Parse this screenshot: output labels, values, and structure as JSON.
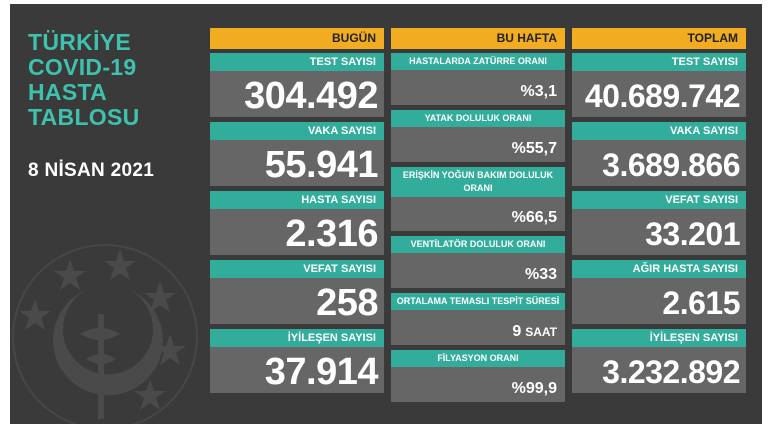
{
  "title_lines": [
    "TÜRKİYE",
    "COVID-19",
    "HASTA",
    "TABLOSU"
  ],
  "date": "8 NİSAN 2021",
  "columns": {
    "today": {
      "header": "BUGÜN",
      "items": [
        {
          "label": "TEST SAYISI",
          "value": "304.492"
        },
        {
          "label": "VAKA SAYISI",
          "value": "55.941"
        },
        {
          "label": "HASTA SAYISI",
          "value": "2.316"
        },
        {
          "label": "VEFAT SAYISI",
          "value": "258"
        },
        {
          "label": "İYİLEŞEN SAYISI",
          "value": "37.914"
        }
      ]
    },
    "week": {
      "header": "BU HAFTA",
      "items": [
        {
          "label": "HASTALARDA ZATÜRRE ORANI",
          "value": "%3,1"
        },
        {
          "label": "YATAK DOLULUK ORANI",
          "value": "%55,7"
        },
        {
          "label": "ERİŞKİN YOĞUN BAKIM DOLULUK ORANI",
          "value": "%66,5"
        },
        {
          "label": "VENTİLATÖR DOLULUK ORANI",
          "value": "%33"
        },
        {
          "label": "ORTALAMA TEMASLI TESPİT SÜRESİ",
          "value": "9",
          "unit": "SAAT"
        },
        {
          "label": "FİLYASYON ORANI",
          "value": "%99,9"
        }
      ]
    },
    "total": {
      "header": "TOPLAM",
      "items": [
        {
          "label": "TEST SAYISI",
          "value": "40.689.742"
        },
        {
          "label": "VAKA SAYISI",
          "value": "3.689.866"
        },
        {
          "label": "VEFAT SAYISI",
          "value": "33.201"
        },
        {
          "label": "AĞIR HASTA SAYISI",
          "value": "2.615"
        },
        {
          "label": "İYİLEŞEN SAYISI",
          "value": "3.232.892"
        }
      ]
    }
  },
  "colors": {
    "background": "#3a3a3a",
    "title": "#3ec1ad",
    "header": "#f2ac22",
    "label_bar": "#33ad9b",
    "card": "#666666"
  },
  "icons": [
    "ministry-of-health-emblem-icon"
  ]
}
